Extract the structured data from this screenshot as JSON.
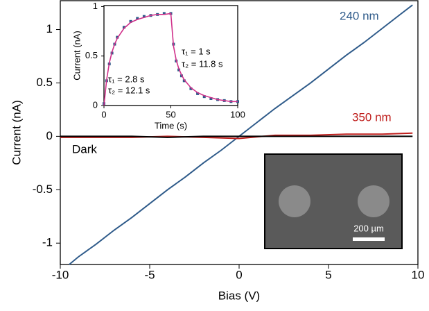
{
  "chart_data": [
    {
      "type": "line",
      "x_label": "Bias (V)",
      "y_label": "Current (nA)",
      "xlim": [
        -10,
        10
      ],
      "ylim": [
        -1.2,
        1.27
      ],
      "xticks": [
        -10,
        -5,
        0,
        5,
        10
      ],
      "yticks": [
        -1,
        -0.5,
        0,
        0.5,
        1
      ],
      "series": [
        {
          "name": "240 nm",
          "color": "#2f5b8a",
          "x": [
            -9.5,
            -9,
            -8,
            -7,
            -6,
            -5,
            -4,
            -3,
            -2,
            -1,
            0,
            1,
            2,
            3,
            4,
            5,
            6,
            7,
            8,
            9,
            9.7
          ],
          "values": [
            -1.2,
            -1.13,
            -1.01,
            -0.88,
            -0.76,
            -0.63,
            -0.5,
            -0.38,
            -0.25,
            -0.13,
            0,
            0.13,
            0.26,
            0.38,
            0.5,
            0.63,
            0.76,
            0.88,
            1.01,
            1.14,
            1.23
          ]
        },
        {
          "name": "350 nm",
          "color": "#c0201e",
          "x": [
            -10,
            -8,
            -6,
            -4,
            -2,
            0,
            2,
            4,
            6,
            8,
            9.7
          ],
          "values": [
            -0.01,
            -0.01,
            -0.01,
            0,
            -0.01,
            -0.02,
            0.01,
            0.01,
            0.02,
            0.02,
            0.03
          ]
        },
        {
          "name": "Dark",
          "color": "#000000",
          "x": [
            -10,
            -8,
            -6,
            -4,
            -2,
            0,
            2,
            4,
            6,
            8,
            9.7
          ],
          "values": [
            0,
            0,
            0,
            -0.01,
            0,
            0,
            0,
            0,
            0,
            0,
            0
          ]
        }
      ],
      "image_scale_bar": "200 µm"
    },
    {
      "type": "line",
      "x_label": "Time (s)",
      "y_label": "Current (nA)",
      "xlim": [
        0,
        100
      ],
      "ylim": [
        0,
        1.01
      ],
      "xticks": [
        0,
        50,
        100
      ],
      "yticks": [
        0,
        0.5,
        1
      ],
      "series": [
        {
          "style": "markers",
          "color": "#2f5b8a",
          "x": [
            0,
            2,
            4,
            6,
            8,
            10,
            15,
            20,
            25,
            30,
            35,
            40,
            45,
            50,
            52,
            54,
            56,
            58,
            60,
            65,
            70,
            75,
            80,
            85,
            90,
            95,
            100
          ],
          "values": [
            0.02,
            0.25,
            0.42,
            0.53,
            0.62,
            0.69,
            0.79,
            0.85,
            0.88,
            0.9,
            0.91,
            0.92,
            0.93,
            0.93,
            0.62,
            0.45,
            0.36,
            0.3,
            0.25,
            0.17,
            0.12,
            0.09,
            0.07,
            0.06,
            0.05,
            0.04,
            0.04
          ]
        },
        {
          "style": "line",
          "color": "#d0308a",
          "x": [
            0,
            2,
            4,
            6,
            8,
            10,
            15,
            20,
            25,
            30,
            35,
            40,
            45,
            50,
            52,
            54,
            56,
            58,
            60,
            65,
            70,
            75,
            80,
            85,
            90,
            95,
            100
          ],
          "values": [
            0,
            0.26,
            0.43,
            0.54,
            0.62,
            0.68,
            0.78,
            0.84,
            0.87,
            0.89,
            0.91,
            0.92,
            0.92,
            0.93,
            0.6,
            0.46,
            0.37,
            0.31,
            0.26,
            0.18,
            0.13,
            0.1,
            0.08,
            0.06,
            0.05,
            0.04,
            0.04
          ]
        }
      ],
      "annotations": [
        [
          "τ₁ = 2.8 s",
          "τ₂ = 12.1 s"
        ],
        [
          "τ₁ = 1 s",
          "τ₂ = 11.8 s"
        ]
      ]
    }
  ]
}
